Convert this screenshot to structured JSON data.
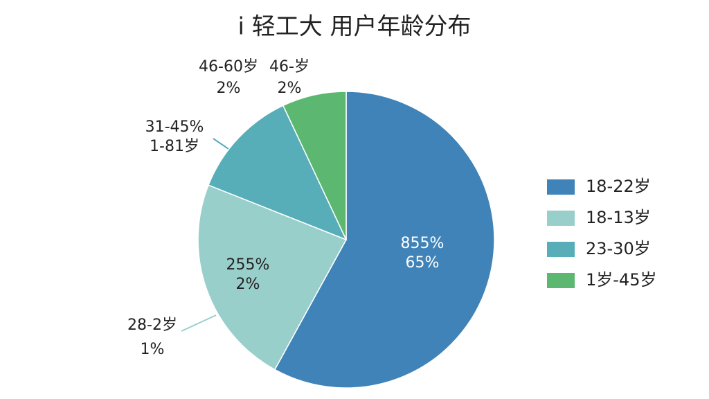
{
  "chart_data": {
    "type": "pie",
    "title": "i 轻工大 用户年龄分布",
    "categories": [
      "18-22岁",
      "18-13岁",
      "23-30岁",
      "1岁-45岁"
    ],
    "values": [
      58,
      23,
      12,
      7
    ],
    "colors": [
      "#3f83b9",
      "#99cfcb",
      "#57aeb9",
      "#5cb870"
    ],
    "annotations": [
      [
        "855%",
        "65%"
      ],
      [
        "255%",
        "2%"
      ],
      [
        "28-2岁",
        "1%"
      ],
      [
        "31-45%",
        "1-81岁"
      ],
      [
        "46-60岁",
        "2%"
      ],
      [
        "46-岁",
        "2%"
      ]
    ]
  }
}
